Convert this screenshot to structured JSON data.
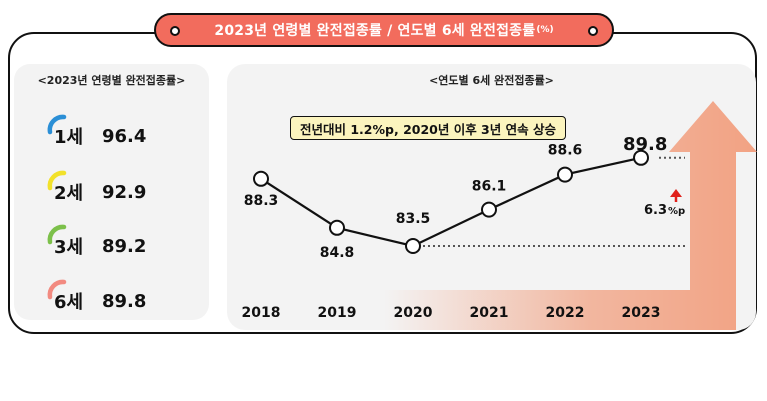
{
  "title": {
    "main": "2023년 연령별 완전접종률 / 연도별 6세 완전접종률",
    "unit": "(%)"
  },
  "left_panel": {
    "title": "<2023년 연령별 완전접종률>",
    "rows": [
      {
        "label": "1세",
        "value": "96.4",
        "color": "#2b8fd6"
      },
      {
        "label": "2세",
        "value": "92.9",
        "color": "#f2e12a"
      },
      {
        "label": "3세",
        "value": "89.2",
        "color": "#7cc04a"
      },
      {
        "label": "6세",
        "value": "89.8",
        "color": "#f28a80"
      }
    ]
  },
  "right_panel": {
    "title": "<연도별 6세 완전접종률>",
    "callout": "전년대비 1.2%p, 2020년 이후 3년 연속 상승",
    "delta_value": "6.3",
    "delta_unit": "%p"
  },
  "colors": {
    "title_bg": "#f26c5d",
    "arrow": "#f2a283",
    "panel_bg": "#f3f3f3",
    "callout_bg": "#fbf4be",
    "delta_arrow": "#e0201a"
  },
  "chart_data": {
    "type": "line",
    "x": [
      "2018",
      "2019",
      "2020",
      "2021",
      "2022",
      "2023"
    ],
    "series": [
      {
        "values": [
          88.3,
          84.8,
          83.5,
          86.1,
          88.6,
          89.8
        ]
      }
    ],
    "data_labels": [
      "88.3",
      "84.8",
      "83.5",
      "86.1",
      "88.6",
      "89.8"
    ],
    "ylim": [
      82,
      91
    ],
    "grid": false
  }
}
